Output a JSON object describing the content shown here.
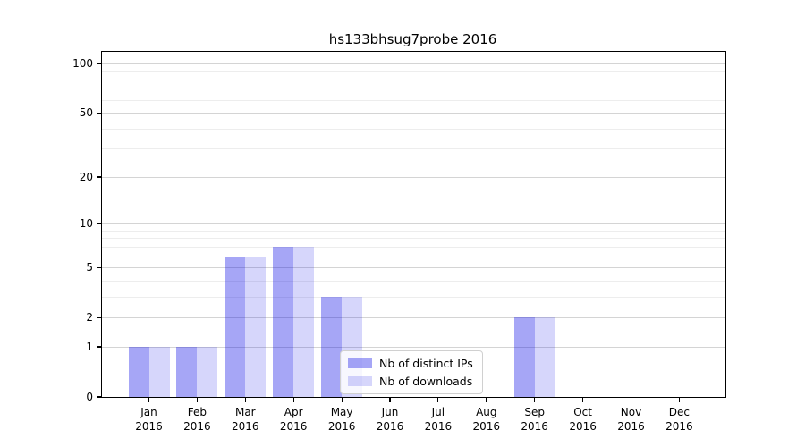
{
  "title": "hs133bhsug7probe 2016",
  "chart_data": {
    "type": "bar",
    "title": "hs133bhsug7probe 2016",
    "categories": [
      "Jan 2016",
      "Feb 2016",
      "Mar 2016",
      "Apr 2016",
      "May 2016",
      "Jun 2016",
      "Jul 2016",
      "Aug 2016",
      "Sep 2016",
      "Oct 2016",
      "Nov 2016",
      "Dec 2016"
    ],
    "x_tick_line1": [
      "Jan",
      "Feb",
      "Mar",
      "Apr",
      "May",
      "Jun",
      "Jul",
      "Aug",
      "Sep",
      "Oct",
      "Nov",
      "Dec"
    ],
    "x_tick_line2": [
      "2016",
      "2016",
      "2016",
      "2016",
      "2016",
      "2016",
      "2016",
      "2016",
      "2016",
      "2016",
      "2016",
      "2016"
    ],
    "series": [
      {
        "name": "Nb of distinct IPs",
        "color": "rgba(0,0,230,0.35)",
        "values": [
          1,
          1,
          6,
          7,
          3,
          0,
          0,
          0,
          2,
          0,
          0,
          0
        ]
      },
      {
        "name": "Nb of downloads",
        "color": "rgba(0,0,230,0.16)",
        "values": [
          1,
          1,
          6,
          7,
          3,
          0,
          0,
          0,
          2,
          0,
          0,
          0
        ]
      }
    ],
    "y_axis": {
      "scale": "log10(1+value)",
      "major_ticks": [
        0,
        1,
        2,
        5,
        10,
        20,
        50,
        100
      ],
      "minor_gridlines": [
        3,
        4,
        6,
        7,
        8,
        9,
        30,
        40,
        60,
        70,
        80,
        90
      ],
      "ylim": [
        0,
        115
      ]
    },
    "grid": "on",
    "legend_position": "lower center",
    "colors": {
      "grid_major": "#d4d4d4",
      "grid_minor": "#ededed",
      "axis": "#000000",
      "background": "#ffffff"
    }
  }
}
